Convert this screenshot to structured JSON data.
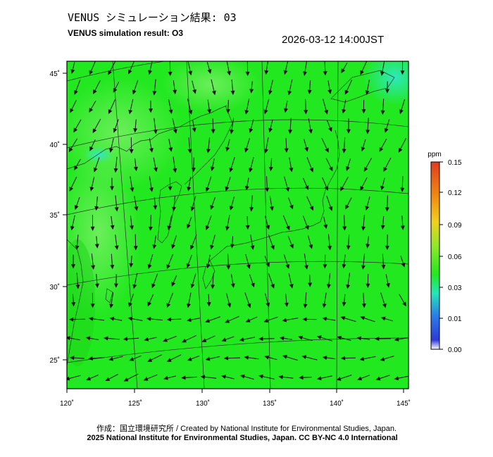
{
  "header": {
    "title_jp": "VENUS シミュレーション結果: 03",
    "title_en": "VENUS simulation result: O3",
    "timestamp": "2026-03-12 14:00JST"
  },
  "map": {
    "lon_ticks": [
      "120˚",
      "125˚",
      "130˚",
      "135˚",
      "140˚",
      "145˚"
    ],
    "lat_ticks": [
      "45˚",
      "40˚",
      "35˚",
      "30˚",
      "25˚"
    ],
    "field_color": "#22e81f",
    "field_color_light": "#55ec4a",
    "field_color_cyan": "#2fe8b8"
  },
  "colorbar": {
    "unit": "ppm",
    "tick_labels": [
      "0.15",
      "0.12",
      "0.09",
      "0.06",
      "0.03",
      "0.01",
      "0.00"
    ],
    "colors": [
      "#e23b1f",
      "#f08a10",
      "#f0d020",
      "#8ee82a",
      "#22e81f",
      "#26e6b8",
      "#2a7ee8",
      "#2d3ad8",
      "#ffffff"
    ]
  },
  "footer": {
    "credit": "作成：国立環境研究所 / Created by National Institute for Environmental Studies, Japan.",
    "copyright": "2025 National Institute for Environmental Studies, Japan. CC BY-NC 4.0 International"
  }
}
